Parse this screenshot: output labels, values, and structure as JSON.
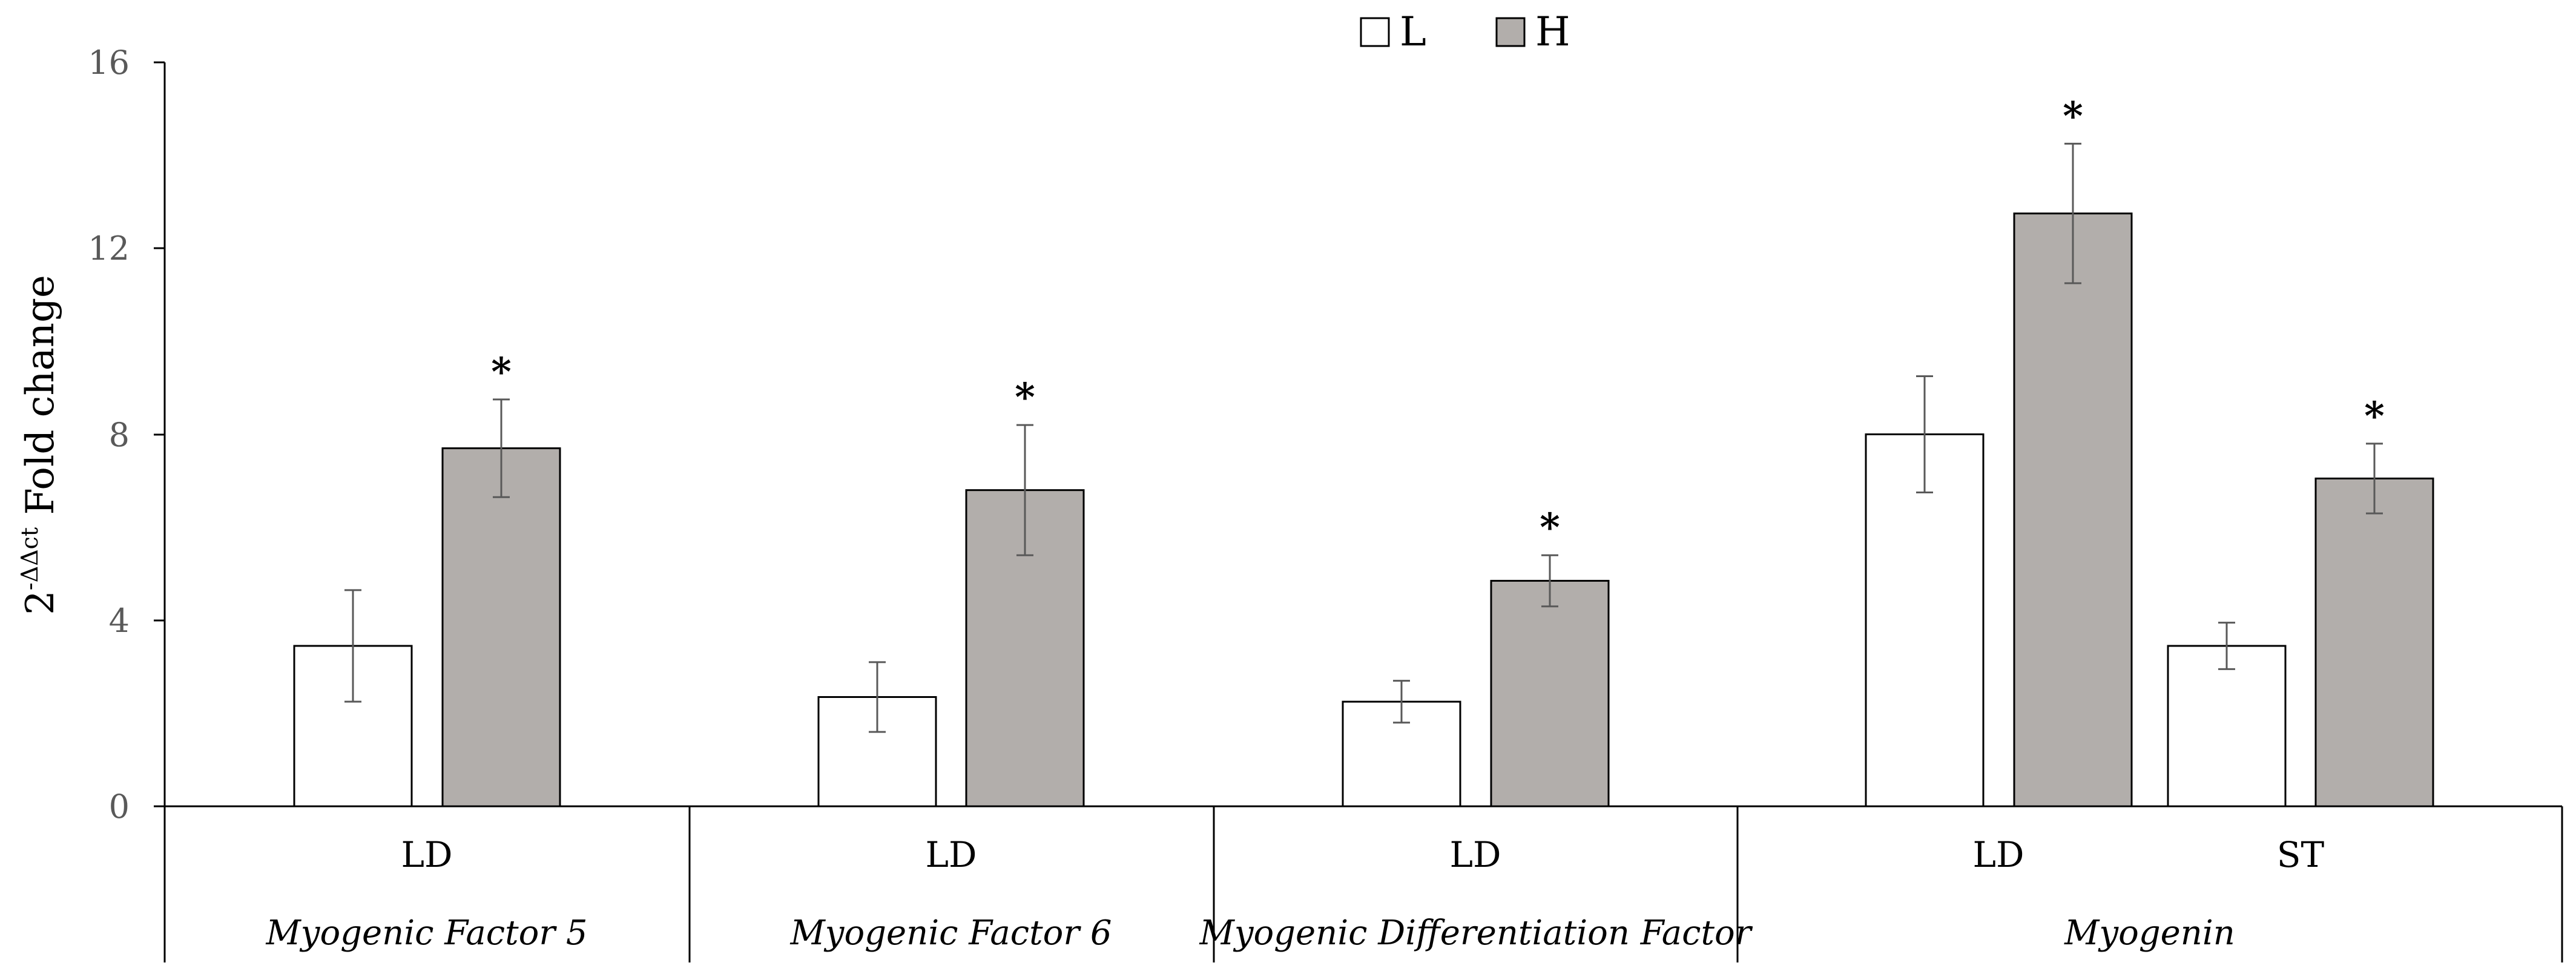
{
  "chart_data": {
    "type": "bar",
    "ylabel_base": "2",
    "ylabel_superscript": "-ΔΔct",
    "ylabel_text": "Fold change",
    "ylim": [
      0,
      16
    ],
    "yticks": [
      "0",
      "4",
      "8",
      "12",
      "16"
    ],
    "legend": [
      {
        "name": "L",
        "color": "#ffffff"
      },
      {
        "name": "H",
        "color": "#b2aeab"
      }
    ],
    "groups": [
      {
        "gene": "Myogenic Factor 5",
        "tissues": [
          "LD"
        ]
      },
      {
        "gene": "Myogenic Factor 6",
        "tissues": [
          "LD"
        ]
      },
      {
        "gene": "Myogenic Differentiation Factor",
        "tissues": [
          "LD"
        ]
      },
      {
        "gene": "Myogenin",
        "tissues": [
          "LD",
          "ST"
        ]
      }
    ],
    "bars": [
      {
        "gene": "Myogenic Factor 5",
        "tissue": "LD",
        "series": "L",
        "value": 3.45,
        "error": 1.2,
        "sig": ""
      },
      {
        "gene": "Myogenic Factor 5",
        "tissue": "LD",
        "series": "H",
        "value": 7.7,
        "error": 1.05,
        "sig": "*"
      },
      {
        "gene": "Myogenic Factor 6",
        "tissue": "LD",
        "series": "L",
        "value": 2.35,
        "error": 0.75,
        "sig": ""
      },
      {
        "gene": "Myogenic Factor 6",
        "tissue": "LD",
        "series": "H",
        "value": 6.8,
        "error": 1.4,
        "sig": "*"
      },
      {
        "gene": "Myogenic Differentiation Factor",
        "tissue": "LD",
        "series": "L",
        "value": 2.25,
        "error": 0.45,
        "sig": ""
      },
      {
        "gene": "Myogenic Differentiation Factor",
        "tissue": "LD",
        "series": "H",
        "value": 4.85,
        "error": 0.55,
        "sig": "*"
      },
      {
        "gene": "Myogenin",
        "tissue": "LD",
        "series": "L",
        "value": 8.0,
        "error": 1.25,
        "sig": ""
      },
      {
        "gene": "Myogenin",
        "tissue": "LD",
        "series": "H",
        "value": 12.75,
        "error": 1.5,
        "sig": "*"
      },
      {
        "gene": "Myogenin",
        "tissue": "ST",
        "series": "L",
        "value": 3.45,
        "error": 0.5,
        "sig": ""
      },
      {
        "gene": "Myogenin",
        "tissue": "ST",
        "series": "H",
        "value": 7.05,
        "error": 0.75,
        "sig": "*"
      }
    ]
  }
}
